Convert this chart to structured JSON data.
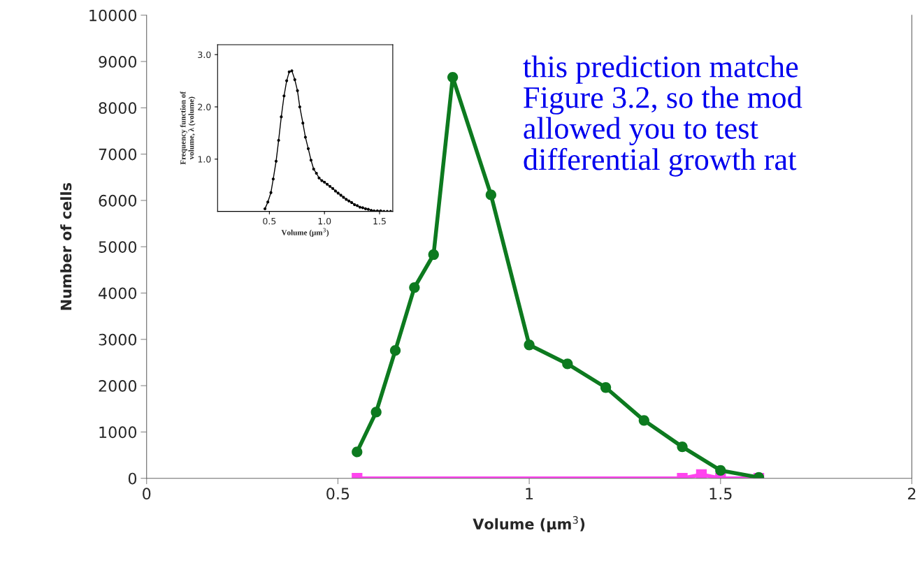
{
  "chart_data": [
    {
      "type": "line",
      "xlabel": "Volume (μm$^{3}$)",
      "ylabel": "Number of cells",
      "xlim": [
        0,
        2
      ],
      "ylim": [
        0,
        10000
      ],
      "xticks": [
        0,
        0.5,
        1,
        1.5,
        2
      ],
      "yticks": [
        0,
        1000,
        2000,
        3000,
        4000,
        5000,
        6000,
        7000,
        8000,
        9000,
        10000
      ],
      "series": [
        {
          "color": "#ff44ee",
          "marker": "square",
          "x": [
            0.55,
            1.4,
            1.45,
            1.5,
            1.6
          ],
          "values": [
            0,
            0,
            80,
            0,
            0
          ]
        },
        {
          "color": "#0d7a1f",
          "marker": "circle",
          "x": [
            0.55,
            0.6,
            0.65,
            0.7,
            0.75,
            0.8,
            0.9,
            1.0,
            1.1,
            1.2,
            1.3,
            1.4,
            1.5,
            1.6
          ],
          "values": [
            570,
            1430,
            2760,
            4120,
            4830,
            8660,
            6120,
            2880,
            2470,
            1960,
            1250,
            680,
            170,
            20
          ]
        }
      ],
      "annotations": [
        "this prediction matche\nFigure 3.2, so the mod\nallowed you to test\ndifferential growth rat"
      ]
    },
    {
      "type": "line",
      "xlabel": "Volume (μm$^{3}$)",
      "ylabel": "Frequency function of\nvolume, λ (volume)",
      "xlim": [
        0.03,
        1.62
      ],
      "ylim": [
        0,
        3.19
      ],
      "xticks": [
        {
          "value": 0.5,
          "label": "0.5"
        },
        {
          "value": 1.0,
          "label": "1.0"
        },
        {
          "value": 1.5,
          "label": "1.5"
        }
      ],
      "yticks": [
        {
          "value": 1.0,
          "label": "1.0"
        },
        {
          "value": 2.0,
          "label": "2.0"
        },
        {
          "value": 3.0,
          "label": "3.0"
        }
      ],
      "series": [
        {
          "color": "#000000",
          "marker": "circle",
          "x": [
            0.46,
            0.486,
            0.514,
            0.535,
            0.561,
            0.584,
            0.608,
            0.633,
            0.657,
            0.68,
            0.704,
            0.731,
            0.755,
            0.776,
            0.804,
            0.827,
            0.853,
            0.878,
            0.902,
            0.927,
            0.951,
            0.976,
            1.0,
            1.025,
            1.05,
            1.075,
            1.1,
            1.124,
            1.149,
            1.173,
            1.198,
            1.222,
            1.247,
            1.273,
            1.298,
            1.322,
            1.347,
            1.373,
            1.398,
            1.424,
            1.45,
            1.48,
            1.51,
            1.54,
            1.57,
            1.6
          ],
          "values": [
            0.05,
            0.18,
            0.36,
            0.62,
            0.96,
            1.36,
            1.81,
            2.21,
            2.5,
            2.67,
            2.69,
            2.52,
            2.31,
            2.0,
            1.69,
            1.42,
            1.2,
            0.98,
            0.81,
            0.73,
            0.64,
            0.59,
            0.56,
            0.52,
            0.48,
            0.44,
            0.39,
            0.35,
            0.31,
            0.27,
            0.23,
            0.2,
            0.17,
            0.13,
            0.11,
            0.08,
            0.07,
            0.05,
            0.04,
            0.02,
            0.01,
            0.01,
            0.01,
            0.0,
            0.0,
            0.0
          ]
        }
      ]
    }
  ]
}
